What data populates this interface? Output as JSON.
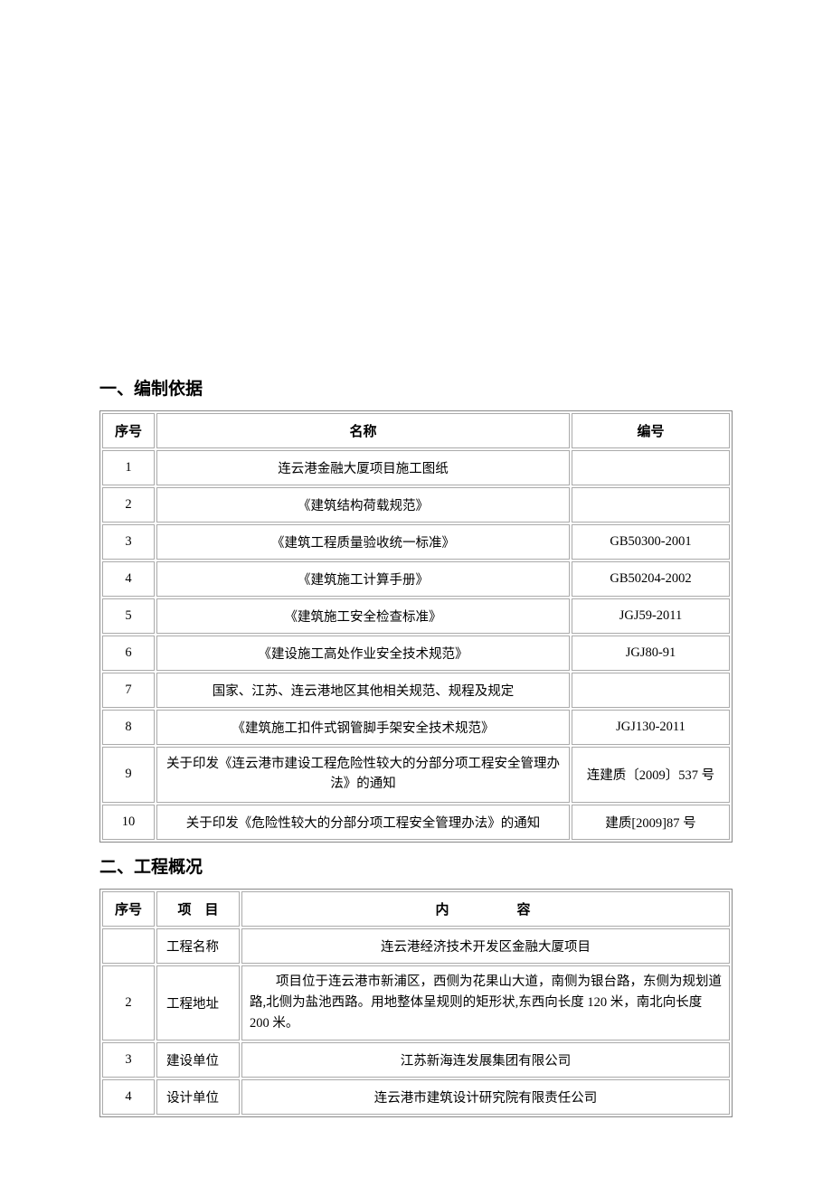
{
  "sections": {
    "s1_title": "一、编制依据",
    "s2_title": "二、工程概况"
  },
  "table1": {
    "headers": {
      "col1": "序号",
      "col2": "名称",
      "col3": "编号"
    },
    "rows": [
      {
        "n": "1",
        "name": "连云港金融大厦项目施工图纸",
        "code": ""
      },
      {
        "n": "2",
        "name": "《建筑结构荷载规范》",
        "code": ""
      },
      {
        "n": "3",
        "name": "《建筑工程质量验收统一标准》",
        "code": "GB50300-2001"
      },
      {
        "n": "4",
        "name": "《建筑施工计算手册》",
        "code": "GB50204-2002"
      },
      {
        "n": "5",
        "name": "《建筑施工安全检查标准》",
        "code": "JGJ59-2011"
      },
      {
        "n": "6",
        "name": "《建设施工高处作业安全技术规范》",
        "code": "JGJ80-91"
      },
      {
        "n": "7",
        "name": "国家、江苏、连云港地区其他相关规范、规程及规定",
        "code": ""
      },
      {
        "n": "8",
        "name": "《建筑施工扣件式钢管脚手架安全技术规范》",
        "code": "JGJ130-2011"
      },
      {
        "n": "9",
        "name": "关于印发《连云港市建设工程危险性较大的分部分项工程安全管理办法》的通知",
        "code": "连建质〔2009〕537 号"
      },
      {
        "n": "10",
        "name": "关于印发《危险性较大的分部分项工程安全管理办法》的通知",
        "code": "建质[2009]87 号"
      }
    ]
  },
  "table2": {
    "headers": {
      "col1": "序号",
      "col2": "项　目",
      "col3": "内容"
    },
    "rows": [
      {
        "n": "",
        "item": "工程名称",
        "content": "连云港经济技术开发区金融大厦项目",
        "align": "center"
      },
      {
        "n": "2",
        "item": "工程地址",
        "content": "项目位于连云港市新浦区，西侧为花果山大道，南侧为银台路，东侧为规划道路,北侧为盐池西路。用地整体呈规则的矩形状,东西向长度 120 米，南北向长度 200 米。",
        "align": "left"
      },
      {
        "n": "3",
        "item": "建设单位",
        "content": "江苏新海连发展集团有限公司",
        "align": "center"
      },
      {
        "n": "4",
        "item": "设计单位",
        "content": "连云港市建筑设计研究院有限责任公司",
        "align": "center"
      }
    ]
  },
  "style": {
    "page_bg": "#ffffff",
    "text_color": "#000000",
    "border_color": "#aaaaaa",
    "font_body": "SimSun",
    "font_heading": "SimHei",
    "heading_fontsize_pt": 14,
    "body_fontsize_pt": 11
  }
}
